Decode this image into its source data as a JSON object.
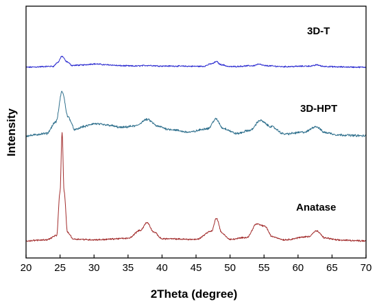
{
  "chart_data": {
    "type": "line",
    "title": "",
    "xlabel": "2Theta (degree)",
    "ylabel": "Intensity",
    "xlim": [
      20,
      70
    ],
    "xticks": [
      20,
      25,
      30,
      35,
      40,
      45,
      50,
      55,
      60,
      65,
      70
    ],
    "y_tick_labels_shown": false,
    "grid": false,
    "legend": "none",
    "series": [
      {
        "name": "3D-T",
        "color": "#2b2bd0",
        "noise": 1.6,
        "x": [
          20,
          24,
          24.6,
          25.3,
          26,
          26.8,
          28,
          30,
          32,
          34,
          36,
          38,
          40,
          46,
          47.4,
          48.0,
          48.6,
          50,
          53.4,
          54.2,
          55.2,
          58,
          62,
          62.8,
          63.6,
          66,
          70
        ],
        "y": [
          0.0,
          0.3,
          1.5,
          3.6,
          1.8,
          0.6,
          0.7,
          1.1,
          0.8,
          0.5,
          0.4,
          0.6,
          0.4,
          0.3,
          1.2,
          1.9,
          0.9,
          0.2,
          0.5,
          1.0,
          0.5,
          0.2,
          0.4,
          0.8,
          0.3,
          0.1,
          0.0
        ]
      },
      {
        "name": "3D-HPT",
        "color": "#2e6f8c",
        "noise": 2.6,
        "x": [
          20,
          23,
          24.4,
          25.3,
          26.2,
          27.2,
          28.5,
          30,
          32,
          34,
          36,
          37.8,
          39.5,
          41,
          44,
          46.8,
          47.9,
          49,
          51,
          53,
          54.4,
          56,
          58,
          61,
          62.6,
          64,
          66,
          70
        ],
        "y": [
          0.0,
          0.5,
          3.0,
          9.5,
          4.0,
          1.3,
          2.0,
          2.6,
          2.3,
          1.8,
          2.1,
          3.5,
          2.0,
          1.4,
          0.8,
          1.6,
          3.6,
          1.6,
          0.5,
          1.2,
          3.3,
          2.0,
          0.4,
          0.8,
          2.0,
          0.7,
          0.2,
          0.0
        ]
      },
      {
        "name": "Anatase",
        "color": "#a12a2a",
        "noise": 1.8,
        "x": [
          20,
          23,
          24.5,
          25.0,
          25.3,
          25.6,
          26.1,
          27,
          30,
          35,
          36.8,
          37.8,
          38.8,
          40,
          45,
          47.3,
          48.0,
          48.8,
          50,
          52.5,
          53.9,
          55.1,
          56.2,
          58,
          61.5,
          62.7,
          64,
          66,
          70
        ],
        "y": [
          0.0,
          0.3,
          1.5,
          14.0,
          31.0,
          14.0,
          2.4,
          0.5,
          0.3,
          0.7,
          3.0,
          5.2,
          2.5,
          0.6,
          0.4,
          2.8,
          6.5,
          2.2,
          0.4,
          1.0,
          4.8,
          4.2,
          1.2,
          0.3,
          1.2,
          2.8,
          0.8,
          0.2,
          0.0
        ]
      }
    ],
    "annotations": [
      {
        "text": "3D-T",
        "series": "3D-T"
      },
      {
        "text": "3D-HPT",
        "series": "3D-HPT"
      },
      {
        "text": "Anatase",
        "series": "Anatase"
      }
    ]
  }
}
